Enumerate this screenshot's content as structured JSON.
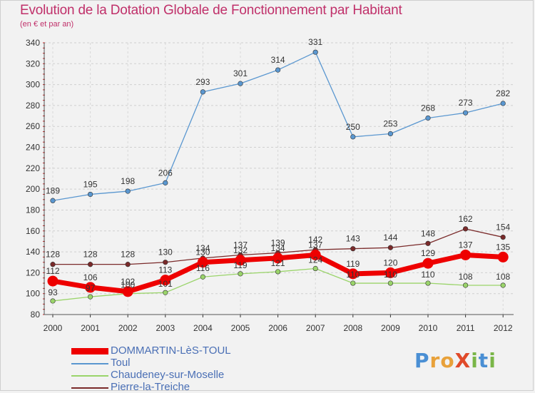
{
  "header": {
    "title": "Evolution de la Dotation Globale de Fonctionnement par Habitant",
    "subtitle": "(en € et par an)"
  },
  "logo": {
    "text": "Proxiti",
    "letters": [
      {
        "ch": "P",
        "color": "#4a8fd4"
      },
      {
        "ch": "r",
        "color": "#e8a13a"
      },
      {
        "ch": "o",
        "color": "#e8a13a"
      },
      {
        "ch": "X",
        "color": "#e04a2a"
      },
      {
        "ch": "i",
        "color": "#7ab648"
      },
      {
        "ch": "t",
        "color": "#4a8fd4"
      },
      {
        "ch": "i",
        "color": "#7ab648"
      }
    ]
  },
  "chart_data": {
    "type": "line",
    "title": "Evolution de la Dotation Globale de Fonctionnement par Habitant",
    "subtitle": "(en € et par an)",
    "x": [
      "2000",
      "2001",
      "2002",
      "2003",
      "2004",
      "2005",
      "2006",
      "2007",
      "2008",
      "2009",
      "2010",
      "2011",
      "2012"
    ],
    "ylim": [
      80,
      340
    ],
    "yticks": [
      80,
      100,
      120,
      140,
      160,
      180,
      200,
      220,
      240,
      260,
      280,
      300,
      320,
      340
    ],
    "grid": true,
    "legend_position": "bottom-left",
    "series": [
      {
        "name": "DOMMARTIN-LèS-TOUL",
        "color": "#ee0000",
        "width": "thick",
        "values": [
          112,
          106,
          102,
          113,
          130,
          132,
          134,
          137,
          119,
          120,
          129,
          137,
          135
        ],
        "labels": [
          112,
          106,
          102,
          113,
          130,
          132,
          134,
          137,
          119,
          120,
          129,
          137,
          135
        ]
      },
      {
        "name": "Toul",
        "color": "#5a97d0",
        "width": "thin",
        "values": [
          189,
          195,
          198,
          206,
          293,
          301,
          314,
          331,
          250,
          253,
          268,
          273,
          282
        ],
        "labels": [
          189,
          195,
          198,
          206,
          293,
          301,
          314,
          331,
          250,
          253,
          268,
          273,
          282
        ]
      },
      {
        "name": "Chaudeney-sur-Moselle",
        "color": "#9ad46a",
        "width": "thin",
        "values": [
          93,
          97,
          100,
          101,
          116,
          119,
          121,
          124,
          110,
          110,
          110,
          108,
          108
        ],
        "labels": [
          93,
          97,
          100,
          101,
          116,
          119,
          121,
          124,
          110,
          110,
          110,
          108,
          108
        ]
      },
      {
        "name": "Pierre-la-Treiche",
        "color": "#7a2a2a",
        "width": "thin",
        "values": [
          128,
          128,
          128,
          130,
          134,
          137,
          139,
          142,
          143,
          144,
          148,
          162,
          154
        ],
        "labels": [
          128,
          128,
          128,
          130,
          134,
          137,
          139,
          142,
          143,
          144,
          148,
          162,
          154
        ]
      }
    ]
  }
}
